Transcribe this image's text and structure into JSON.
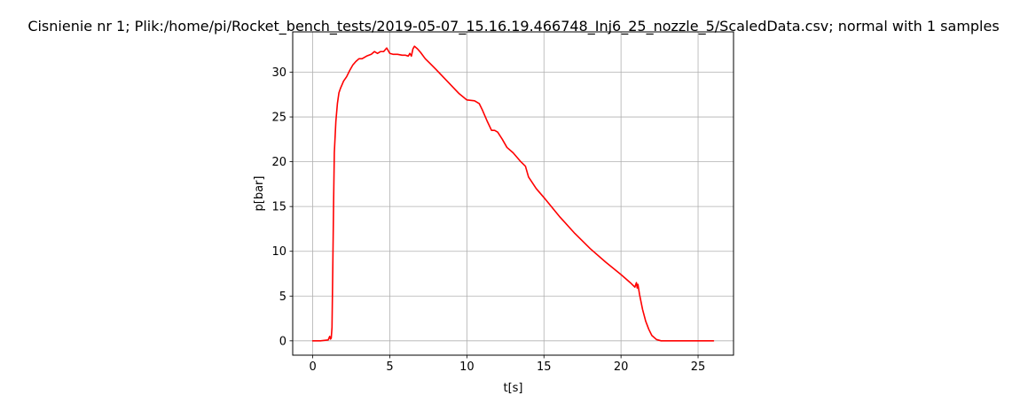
{
  "chart_data": {
    "type": "line",
    "title": "Cisnienie nr 1; Plik:/home/pi/Rocket_bench_tests/2019-05-07_15.16.19.466748_Inj6_25_nozzle_5/ScaledData.csv; normal with 1 samples",
    "xlabel": "t[s]",
    "ylabel": "p[bar]",
    "xlim": [
      -1.3,
      27.3
    ],
    "ylim": [
      -1.6,
      34.5
    ],
    "xticks": [
      0,
      5,
      10,
      15,
      20,
      25
    ],
    "yticks": [
      0,
      5,
      10,
      15,
      20,
      25,
      30
    ],
    "grid": true,
    "legend": "none",
    "series": [
      {
        "color": "#ff0000",
        "x": [
          0,
          0.5,
          1.0,
          1.1,
          1.15,
          1.2,
          1.25,
          1.3,
          1.35,
          1.4,
          1.5,
          1.6,
          1.7,
          1.8,
          1.9,
          2.0,
          2.2,
          2.4,
          2.6,
          2.8,
          3.0,
          3.2,
          3.5,
          3.8,
          4.0,
          4.2,
          4.4,
          4.6,
          4.8,
          4.9,
          5.0,
          5.2,
          5.5,
          5.8,
          6.0,
          6.2,
          6.3,
          6.4,
          6.5,
          6.6,
          6.8,
          7.0,
          7.3,
          7.6,
          8.0,
          8.5,
          9.0,
          9.5,
          10.0,
          10.5,
          10.8,
          11.0,
          11.3,
          11.6,
          11.8,
          12.0,
          12.3,
          12.6,
          13.0,
          13.5,
          13.8,
          14.0,
          14.5,
          15.0,
          16.0,
          17.0,
          18.0,
          19.0,
          20.0,
          20.6,
          20.9,
          21.0,
          21.05,
          21.1,
          21.2,
          21.4,
          21.6,
          21.8,
          22.0,
          22.3,
          22.6,
          22.8,
          23.0,
          24.0,
          25.0,
          26.0
        ],
        "y": [
          0,
          0,
          0.1,
          0.5,
          0.2,
          0.3,
          1.5,
          8.0,
          15.0,
          21.0,
          24.5,
          26.5,
          27.7,
          28.2,
          28.6,
          29.0,
          29.5,
          30.2,
          30.8,
          31.2,
          31.5,
          31.5,
          31.8,
          32.0,
          32.3,
          32.1,
          32.3,
          32.3,
          32.7,
          32.4,
          32.1,
          32.0,
          32.0,
          31.9,
          31.9,
          31.8,
          32.1,
          31.8,
          32.6,
          32.9,
          32.6,
          32.2,
          31.5,
          31.0,
          30.3,
          29.4,
          28.5,
          27.6,
          26.9,
          26.8,
          26.5,
          25.8,
          24.6,
          23.5,
          23.5,
          23.3,
          22.5,
          21.6,
          21.0,
          20.0,
          19.5,
          18.3,
          17.0,
          16.0,
          13.9,
          12.0,
          10.3,
          8.8,
          7.4,
          6.5,
          6.0,
          6.5,
          5.9,
          6.3,
          5.2,
          3.5,
          2.2,
          1.3,
          0.6,
          0.15,
          0,
          0,
          0,
          0,
          0,
          0
        ]
      }
    ]
  }
}
